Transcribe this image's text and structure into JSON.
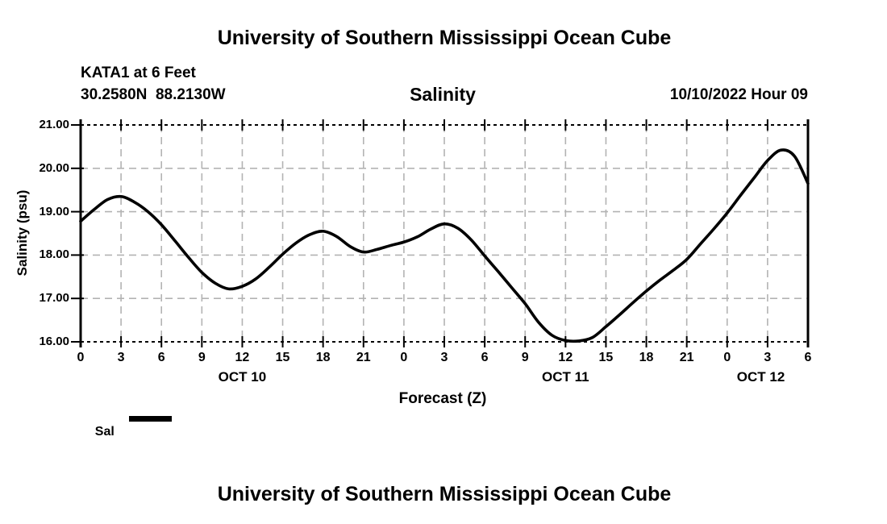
{
  "header": {
    "top_title": "University of Southern Mississippi Ocean Cube",
    "station_line1": "KATA1 at 6 Feet",
    "station_line2": "30.2580N  88.2130W",
    "subtitle": "Salinity",
    "datetime": "10/10/2022 Hour 09"
  },
  "footer": {
    "bottom_title": "University of Southern Mississippi Ocean Cube"
  },
  "legend": {
    "label": "Sal",
    "swatch_color": "#000000"
  },
  "chart_data": {
    "type": "line",
    "title": "Salinity",
    "xlabel": "Forecast (Z)",
    "ylabel": "Salinity (psu)",
    "xlim_hours": [
      0,
      54
    ],
    "ylim": [
      16,
      21
    ],
    "grid": "dashed",
    "grid_color": "#b3b3b3",
    "axis_color": "#000000",
    "line_color": "#000000",
    "legend_position": "bottom-left",
    "y_tick_values": [
      21,
      20,
      19,
      18,
      17,
      16
    ],
    "y_tick_labels": [
      "21.00",
      "20.00",
      "19.00",
      "18.00",
      "17.00",
      "16.00"
    ],
    "x_tick_hours": [
      0,
      3,
      6,
      9,
      12,
      15,
      18,
      21,
      24,
      27,
      30,
      33,
      36,
      39,
      42,
      45,
      48,
      51,
      54
    ],
    "x_tick_labels": [
      "0",
      "3",
      "6",
      "9",
      "12",
      "15",
      "18",
      "21",
      "0",
      "3",
      "6",
      "9",
      "12",
      "15",
      "18",
      "21",
      "0",
      "3",
      "6"
    ],
    "day_labels": [
      {
        "text": "OCT 10",
        "hour": 12
      },
      {
        "text": "OCT 11",
        "hour": 36
      },
      {
        "text": "OCT 12",
        "hour": 50.5
      }
    ],
    "series": [
      {
        "name": "Sal",
        "x_hours": [
          0,
          1,
          2,
          3,
          4,
          5,
          6,
          7,
          8,
          9,
          10,
          11,
          12,
          13,
          14,
          15,
          16,
          17,
          18,
          19,
          20,
          21,
          22,
          23,
          24,
          25,
          26,
          27,
          28,
          29,
          30,
          31,
          32,
          33,
          34,
          35,
          36,
          37,
          38,
          39,
          40,
          41,
          42,
          43,
          44,
          45,
          46,
          47,
          48,
          49,
          50,
          51,
          52,
          53,
          54
        ],
        "values": [
          18.78,
          19.05,
          19.28,
          19.35,
          19.22,
          19.0,
          18.7,
          18.33,
          17.95,
          17.6,
          17.35,
          17.22,
          17.28,
          17.45,
          17.72,
          18.02,
          18.28,
          18.47,
          18.55,
          18.43,
          18.2,
          18.07,
          18.13,
          18.22,
          18.3,
          18.42,
          18.6,
          18.72,
          18.62,
          18.35,
          17.98,
          17.62,
          17.25,
          16.88,
          16.45,
          16.15,
          16.03,
          16.02,
          16.1,
          16.35,
          16.62,
          16.9,
          17.17,
          17.42,
          17.65,
          17.9,
          18.25,
          18.6,
          18.97,
          19.38,
          19.78,
          20.18,
          20.42,
          20.28,
          19.65
        ]
      }
    ]
  }
}
